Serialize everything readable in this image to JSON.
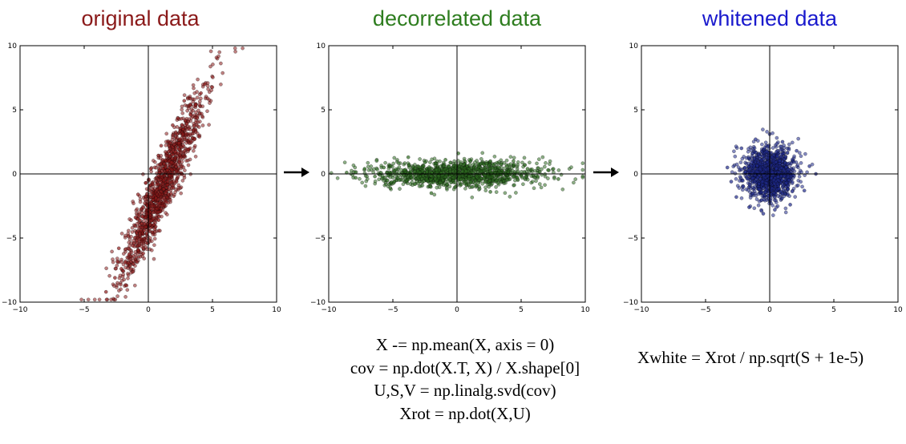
{
  "chart_data": [
    {
      "type": "scatter",
      "title": "original data",
      "title_color": "#8b1a1a",
      "marker_color": "#8b1a1a",
      "xlim": [
        -10,
        10
      ],
      "ylim": [
        -10,
        10
      ],
      "xticks": [
        "−10",
        "−5",
        "0",
        "5",
        "10"
      ],
      "yticks": [
        "10",
        "5",
        "0",
        "−5",
        "−10"
      ],
      "points": [
        [
          -3.3,
          -9.2
        ],
        [
          -2.6,
          -8.1
        ],
        [
          -2.1,
          -7.4
        ],
        [
          -1.8,
          -6.9
        ],
        [
          -1.5,
          -6.3
        ],
        [
          -1.2,
          -5.6
        ],
        [
          -0.9,
          -5.2
        ],
        [
          -0.6,
          -4.4
        ],
        [
          -0.3,
          -3.9
        ],
        [
          0.0,
          -3.1
        ],
        [
          0.3,
          -2.5
        ],
        [
          0.6,
          -1.9
        ],
        [
          0.9,
          -1.1
        ],
        [
          1.2,
          -0.5
        ],
        [
          1.5,
          0.3
        ],
        [
          1.8,
          0.9
        ],
        [
          2.1,
          1.7
        ],
        [
          2.4,
          2.4
        ],
        [
          2.7,
          3.1
        ],
        [
          3.0,
          3.9
        ],
        [
          3.3,
          4.6
        ],
        [
          3.7,
          5.4
        ],
        [
          4.1,
          6.3
        ],
        [
          4.4,
          7.0
        ],
        [
          -1.0,
          -3.4
        ],
        [
          -0.4,
          -6.2
        ],
        [
          0.5,
          -4.3
        ],
        [
          1.4,
          -2.2
        ],
        [
          2.2,
          -0.6
        ],
        [
          3.1,
          1.9
        ],
        [
          0.2,
          0.4
        ],
        [
          1.0,
          2.2
        ],
        [
          -0.8,
          -1.6
        ],
        [
          2.8,
          5.7
        ],
        [
          -2.3,
          -5.8
        ],
        [
          -1.7,
          -8.7
        ],
        [
          1.9,
          3.8
        ],
        [
          3.6,
          2.7
        ],
        [
          0.8,
          -3.6
        ],
        [
          -0.2,
          -0.7
        ]
      ],
      "n_points": 1200
    },
    {
      "type": "scatter",
      "title": "decorrelated data",
      "title_color": "#2e7d1f",
      "marker_color": "#2e6b20",
      "xlim": [
        -10,
        10
      ],
      "ylim": [
        -10,
        10
      ],
      "xticks": [
        "−10",
        "−5",
        "0",
        "5",
        "10"
      ],
      "yticks": [
        "10",
        "5",
        "0",
        "−5",
        "−10"
      ],
      "points": [
        [
          -8.6,
          0.1
        ],
        [
          -7.9,
          -0.3
        ],
        [
          -7.2,
          0.4
        ],
        [
          -6.4,
          -0.2
        ],
        [
          -5.7,
          0.5
        ],
        [
          -4.9,
          -0.6
        ],
        [
          -4.1,
          0.3
        ],
        [
          -3.3,
          -0.8
        ],
        [
          -2.5,
          0.9
        ],
        [
          -1.7,
          -0.4
        ],
        [
          -0.9,
          1.1
        ],
        [
          -0.1,
          -1.0
        ],
        [
          0.1,
          1.6
        ],
        [
          0.7,
          0.2
        ],
        [
          1.5,
          -0.9
        ],
        [
          2.3,
          0.8
        ],
        [
          3.1,
          -0.5
        ],
        [
          3.9,
          0.6
        ],
        [
          4.7,
          -0.3
        ],
        [
          5.5,
          0.4
        ],
        [
          6.3,
          -0.2
        ],
        [
          7.1,
          0.3
        ],
        [
          7.9,
          -0.4
        ],
        [
          -3.8,
          1.3
        ],
        [
          2.6,
          -1.4
        ],
        [
          -5.2,
          -1.1
        ],
        [
          4.4,
          1.0
        ],
        [
          -2.0,
          -1.5
        ]
      ],
      "n_points": 1200
    },
    {
      "type": "scatter",
      "title": "whitened data",
      "title_color": "#1a1acd",
      "marker_color": "#1f2a8c",
      "xlim": [
        -10,
        10
      ],
      "ylim": [
        -10,
        10
      ],
      "xticks": [
        "−10",
        "−5",
        "0",
        "5",
        "10"
      ],
      "yticks": [
        "10",
        "5",
        "0",
        "−5",
        "−10"
      ],
      "points": [
        [
          -3.3,
          0.5
        ],
        [
          -2.6,
          -1.8
        ],
        [
          -2.2,
          2.0
        ],
        [
          -1.6,
          -2.6
        ],
        [
          -1.1,
          2.7
        ],
        [
          -0.5,
          -3.1
        ],
        [
          0.0,
          3.1
        ],
        [
          0.4,
          -2.8
        ],
        [
          1.0,
          2.5
        ],
        [
          1.6,
          -2.4
        ],
        [
          2.1,
          1.8
        ],
        [
          2.7,
          -1.3
        ],
        [
          3.1,
          0.6
        ],
        [
          3.6,
          0.0
        ],
        [
          -3.0,
          -0.6
        ],
        [
          0.2,
          0.1
        ],
        [
          -1.4,
          0.9
        ],
        [
          1.3,
          -0.7
        ],
        [
          0.6,
          1.4
        ],
        [
          -0.8,
          -1.2
        ]
      ],
      "n_points": 1200
    }
  ],
  "arrows": [
    "→",
    "→"
  ],
  "code_center": [
    "X -= np.mean(X, axis = 0)",
    "cov = np.dot(X.T, X) / X.shape[0]",
    "U,S,V = np.linalg.svd(cov)",
    "Xrot = np.dot(X,U)"
  ],
  "code_right": "Xwhite = Xrot / np.sqrt(S + 1e-5)"
}
